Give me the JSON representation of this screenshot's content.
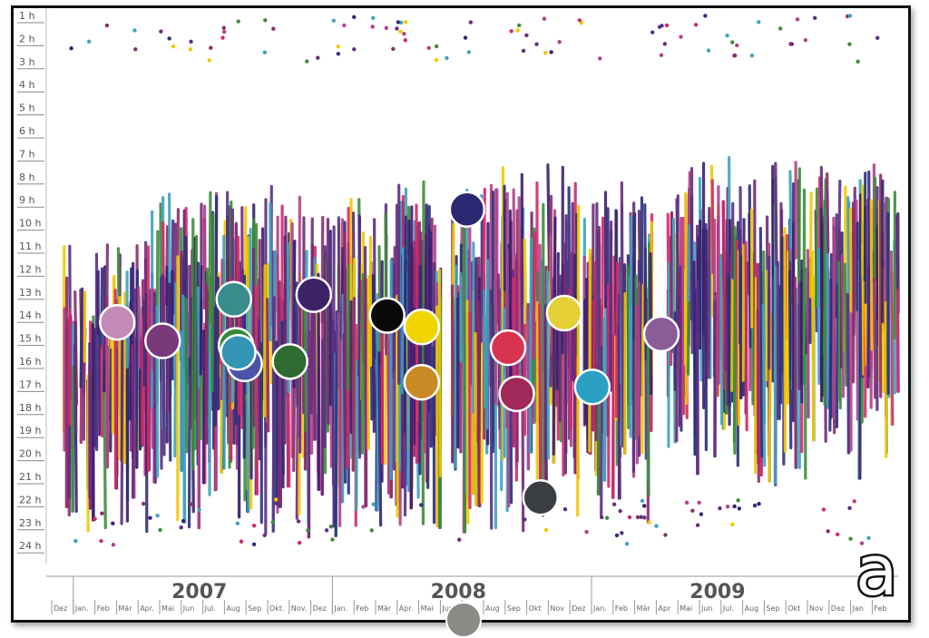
{
  "chart_data": {
    "type": "scatter",
    "title": "",
    "xlabel": "",
    "ylabel": "",
    "y_ticks": [
      "1 h",
      "2 h",
      "3 h",
      "4 h",
      "5 h",
      "6 h",
      "7 h",
      "8 h",
      "9 h",
      "10 h",
      "11 h",
      "12 h",
      "13 h",
      "14 h",
      "15 h",
      "16 h",
      "17 h",
      "18 h",
      "19 h",
      "20 h",
      "21 h",
      "22 h",
      "23 h",
      "24 h"
    ],
    "ylim": [
      1,
      24
    ],
    "years": [
      "2007",
      "2008",
      "2009"
    ],
    "month_ticks": [
      "Dez",
      "Jan.",
      "Feb",
      "Mär",
      "Apr.",
      "Mai",
      "Jun",
      "Jul.",
      "Aug",
      "Sep",
      "Okt.",
      "Nov.",
      "Dez",
      "Jan.",
      "Feb",
      "Mär",
      "Apr.",
      "Mai",
      "Jun",
      "Jul.",
      "Aug",
      "Sep",
      "Okt",
      "Nov",
      "Dez",
      "Jan.",
      "Feb",
      "Mär",
      "Apr",
      "Mai",
      "Jun",
      "Jul.",
      "Aug",
      "Sep",
      "Okt",
      "Nov",
      "Dez",
      "Jan",
      "Feb"
    ],
    "panel_label": "a",
    "grid": false,
    "legend": "none",
    "clusters": [
      {
        "month_index": 2.7,
        "hour": 14.0,
        "color": "#c48bb8"
      },
      {
        "month_index": 4.8,
        "hour": 14.8,
        "color": "#7a3a7a"
      },
      {
        "month_index": 8.1,
        "hour": 13.0,
        "color": "#3a8c8c"
      },
      {
        "month_index": 8.2,
        "hour": 15.0,
        "color": "#35893a"
      },
      {
        "month_index": 8.6,
        "hour": 15.8,
        "color": "#4a55a8"
      },
      {
        "month_index": 8.3,
        "hour": 15.3,
        "color": "#3394b6"
      },
      {
        "month_index": 10.7,
        "hour": 15.7,
        "color": "#2e6b30"
      },
      {
        "month_index": 11.8,
        "hour": 12.8,
        "color": "#3c2368"
      },
      {
        "month_index": 15.2,
        "hour": 13.7,
        "color": "#0a0a0a"
      },
      {
        "month_index": 16.8,
        "hour": 14.2,
        "color": "#f0d400"
      },
      {
        "month_index": 16.8,
        "hour": 16.6,
        "color": "#c98a26"
      },
      {
        "month_index": 18.9,
        "hour": 9.1,
        "color": "#2a2870"
      },
      {
        "month_index": 20.8,
        "hour": 15.1,
        "color": "#d8334f"
      },
      {
        "month_index": 21.2,
        "hour": 17.1,
        "color": "#a0295a"
      },
      {
        "month_index": 22.3,
        "hour": 21.6,
        "color": "#3a3d42"
      },
      {
        "month_index": 23.4,
        "hour": 13.6,
        "color": "#e4cf35"
      },
      {
        "month_index": 24.7,
        "hour": 16.8,
        "color": "#2aa0c3"
      },
      {
        "month_index": 27.9,
        "hour": 14.5,
        "color": "#8c5c98"
      }
    ],
    "palette": [
      "#3a1f6e",
      "#6d2c7a",
      "#8b2d6a",
      "#d32a6a",
      "#2d2f7a",
      "#3d8c3a",
      "#3fa2c0",
      "#f1c800",
      "#b0428a",
      "#5a2f84"
    ]
  }
}
